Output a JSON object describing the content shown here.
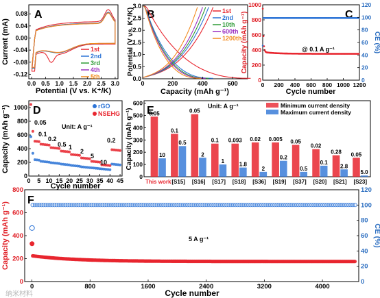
{
  "colors": {
    "red": "#e8262f",
    "blue": "#2d74d6",
    "dblue": "#2b5db5",
    "green": "#2e9a36",
    "purple": "#9b2fc0",
    "orange": "#f28a1c",
    "axisBlue": "#2d6fc1",
    "axisRed": "#e01f26"
  },
  "watermark": "纳米材料",
  "chart_data": [
    {
      "panel": "A",
      "type": "line",
      "xlabel": "Potential (V vs. K⁺/K)",
      "ylabel": "Current (mA)",
      "xlim": [
        -0.1,
        3.1
      ],
      "ylim": [
        -0.135,
        0.11
      ],
      "xticks": [
        "0.0",
        "0.5",
        "1.0",
        "1.5",
        "2.0",
        "2.5",
        "3.0"
      ],
      "yticks": [
        "0.08",
        "0.04",
        "0.00",
        "-0.04",
        "-0.08",
        "-0.12"
      ],
      "series": [
        {
          "name": "1st",
          "color": "#e8262f"
        },
        {
          "name": "2nd",
          "color": "#2d74d6"
        },
        {
          "name": "3rd",
          "color": "#2e9a36"
        },
        {
          "name": "4th",
          "color": "#9b2fc0"
        },
        {
          "name": "5th",
          "color": "#f28a1c"
        }
      ]
    },
    {
      "panel": "B",
      "type": "line",
      "xlabel": "Capacity (mAh g⁻¹)",
      "ylabel": "Potential (V vs. K⁺/K)",
      "xlim": [
        0,
        700
      ],
      "ylim": [
        0,
        3.05
      ],
      "xticks": [
        "0",
        "200",
        "400",
        "600"
      ],
      "yticks": [
        "0.0",
        "0.5",
        "1.0",
        "1.5",
        "2.0",
        "2.5",
        "3.0"
      ],
      "series": [
        {
          "name": "1st",
          "color": "#e8262f",
          "discharge": 720,
          "charge": 470
        },
        {
          "name": "2nd",
          "color": "#2d74d6",
          "discharge": 470,
          "charge": 440
        },
        {
          "name": "10th",
          "color": "#2e9a36",
          "discharge": 440,
          "charge": 420
        },
        {
          "name": "600th",
          "color": "#9b2fc0",
          "discharge": 420,
          "charge": 400
        },
        {
          "name": "1200th",
          "color": "#f28a1c",
          "discharge": 390,
          "charge": 365
        }
      ]
    },
    {
      "panel": "C",
      "type": "scatter",
      "xlabel": "Cycle number",
      "ylabel": "Capacity (mAh g⁻¹)",
      "y2label": "CE (%)",
      "xlim": [
        0,
        1200
      ],
      "ylim": [
        0,
        1000
      ],
      "y2lim": [
        0,
        120
      ],
      "xticks": [
        "0",
        "200",
        "400",
        "600",
        "800",
        "1000",
        "1200"
      ],
      "yticks": [
        "0",
        "200",
        "400",
        "600",
        "800",
        "1000"
      ],
      "y2ticks": [
        "0",
        "20",
        "40",
        "60",
        "80",
        "100",
        "120"
      ],
      "annotation": "@ 0.1 A g⁻¹",
      "capacity_start": 1000,
      "capacity_plateau": 350,
      "ce_start": 55,
      "ce_plateau": 99
    },
    {
      "panel": "D",
      "type": "scatter",
      "xlabel": "Cycle number",
      "ylabel": "Capacity (mAh g⁻¹)",
      "xlim": [
        0,
        46
      ],
      "ylim": [
        0,
        1100
      ],
      "xticks": [
        "0",
        "5",
        "10",
        "15",
        "20",
        "25",
        "30",
        "35",
        "40",
        "45"
      ],
      "yticks": [
        "0",
        "200",
        "400",
        "600",
        "800",
        "1000"
      ],
      "unit": "Unit: A g⁻¹",
      "rate_labels": [
        "0.05",
        "0.1",
        "0.2",
        "0.5",
        "1",
        "2",
        "5",
        "10",
        "0.2"
      ],
      "series": [
        {
          "name": "rGO",
          "color": "#2d74d6",
          "step_values": [
            230,
            200,
            180,
            160,
            140,
            120,
            105,
            90,
            160
          ]
        },
        {
          "name": "NSEHG",
          "color": "#e8262f",
          "step_values": [
            500,
            450,
            400,
            350,
            300,
            250,
            200,
            150,
            370
          ]
        }
      ]
    },
    {
      "panel": "E",
      "type": "bar",
      "ylabel": "Capacity (mAh g⁻¹)",
      "ylim": [
        0,
        620
      ],
      "yticks": [
        "0",
        "100",
        "200",
        "300",
        "400",
        "500",
        "600"
      ],
      "unit": "Unit: A g⁻¹",
      "categories": [
        "This work",
        "[S15]",
        "[S16]",
        "[S17]",
        "[S18]",
        "[S36]",
        "[S19]",
        "[S37]",
        "[S20]",
        "[S21]",
        "[S23]"
      ],
      "series": [
        {
          "name": "Minimum current density",
          "color": "#e8262f",
          "values": [
            490,
            350,
            510,
            270,
            270,
            280,
            280,
            260,
            225,
            175,
            155
          ],
          "labels": [
            "0.05",
            "0.1",
            "0.05",
            "0.1",
            "0.093",
            "0.02",
            "0.005",
            "0.05",
            "0.02",
            "0.28",
            "0.05"
          ]
        },
        {
          "name": "Maximum current density",
          "color": "#2d74d6",
          "values": [
            150,
            250,
            155,
            100,
            75,
            40,
            130,
            40,
            90,
            60,
            10
          ],
          "labels": [
            "10",
            "0.5",
            "2",
            "1",
            "1.8",
            "2",
            "0.2",
            "0.5",
            "0.1",
            "2.8",
            "5.0"
          ]
        }
      ]
    },
    {
      "panel": "F",
      "type": "scatter",
      "xlabel": "Cycle number",
      "ylabel": "Capacity (mAh g⁻¹)",
      "y2label": "CE (%)",
      "xlim": [
        -100,
        4500
      ],
      "ylim": [
        0,
        800
      ],
      "y2lim": [
        0,
        120
      ],
      "xticks": [
        "0",
        "800",
        "1600",
        "2400",
        "3200",
        "4000"
      ],
      "yticks": [
        "0",
        "200",
        "400",
        "600",
        "800"
      ],
      "y2ticks": [
        "0",
        "20",
        "40",
        "60",
        "80",
        "100",
        "120"
      ],
      "annotation": "5 A g⁻¹",
      "capacity_first": 330,
      "capacity_start": 225,
      "capacity_plateau": 175,
      "ce_first": 70,
      "ce_plateau": 100
    }
  ]
}
